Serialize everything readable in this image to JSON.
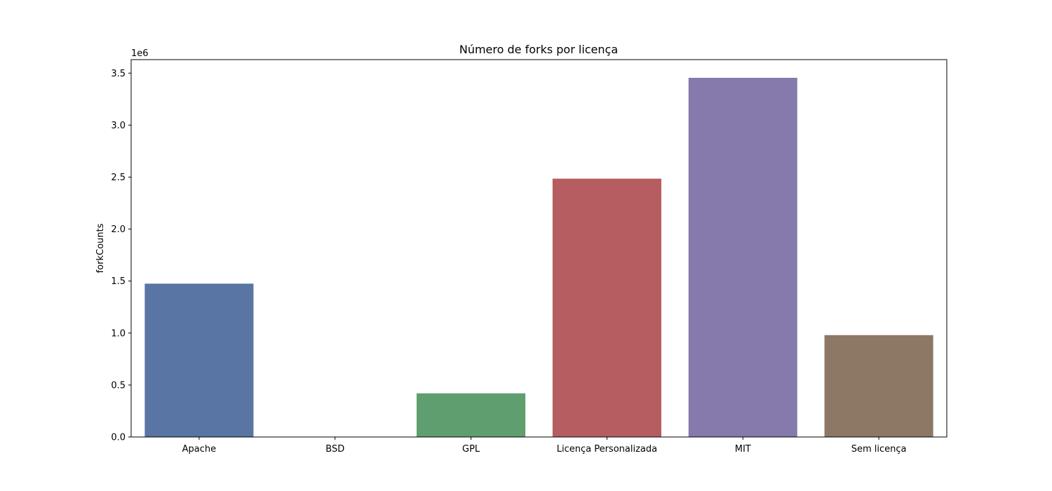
{
  "chart_data": {
    "type": "bar",
    "title": "Número de forks por licença",
    "xlabel": "",
    "ylabel": "forkCounts",
    "y_offset_label": "1e6",
    "y_scale": 1000000,
    "categories": [
      "Apache",
      "BSD",
      "GPL",
      "Licença Personalizada",
      "MIT",
      "Sem licença"
    ],
    "values": [
      1475000,
      0,
      420000,
      2485000,
      3455000,
      980000
    ],
    "colors": [
      "#5975a4",
      "#cc8963",
      "#5f9e6e",
      "#b55d60",
      "#857aab",
      "#8d7866"
    ],
    "ylim": [
      0,
      3630000
    ],
    "yticks": [
      0,
      500000,
      1000000,
      1500000,
      2000000,
      2500000,
      3000000,
      3500000
    ],
    "ytick_labels": [
      "0.0",
      "0.5",
      "1.0",
      "1.5",
      "2.0",
      "2.5",
      "3.0",
      "3.5"
    ],
    "grid": false,
    "legend": "none"
  }
}
